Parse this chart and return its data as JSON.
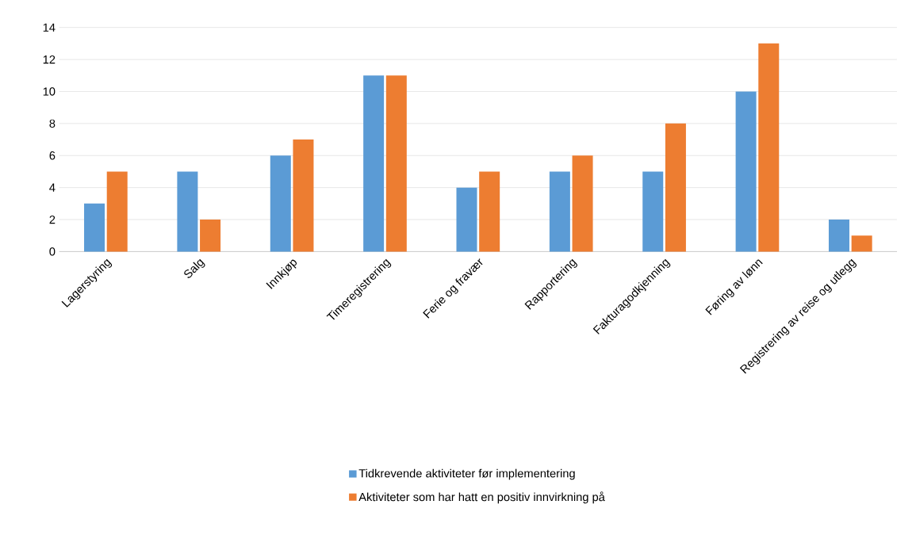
{
  "chart_data": {
    "type": "bar",
    "categories": [
      "Lagerstyring",
      "Salg",
      "Innkjøp",
      "Timeregistrering",
      "Ferie og fravær",
      "Rapportering",
      "Fakturagodkjenning",
      "Føring av lønn",
      "Registrering av reise og utlegg"
    ],
    "series": [
      {
        "name": "Tidkrevende aktiviteter før implementering",
        "color": "#5b9bd5",
        "values": [
          3,
          5,
          6,
          11,
          4,
          5,
          5,
          10,
          2
        ]
      },
      {
        "name": "Aktiviteter som har hatt en positiv innvirkning på",
        "color": "#ed7d31",
        "values": [
          5,
          2,
          7,
          11,
          5,
          6,
          8,
          13,
          1
        ]
      }
    ],
    "ylim": [
      0,
      14
    ],
    "yticks": [
      0,
      2,
      4,
      6,
      8,
      10,
      12,
      14
    ],
    "grid": "y",
    "legend": "bottom"
  }
}
